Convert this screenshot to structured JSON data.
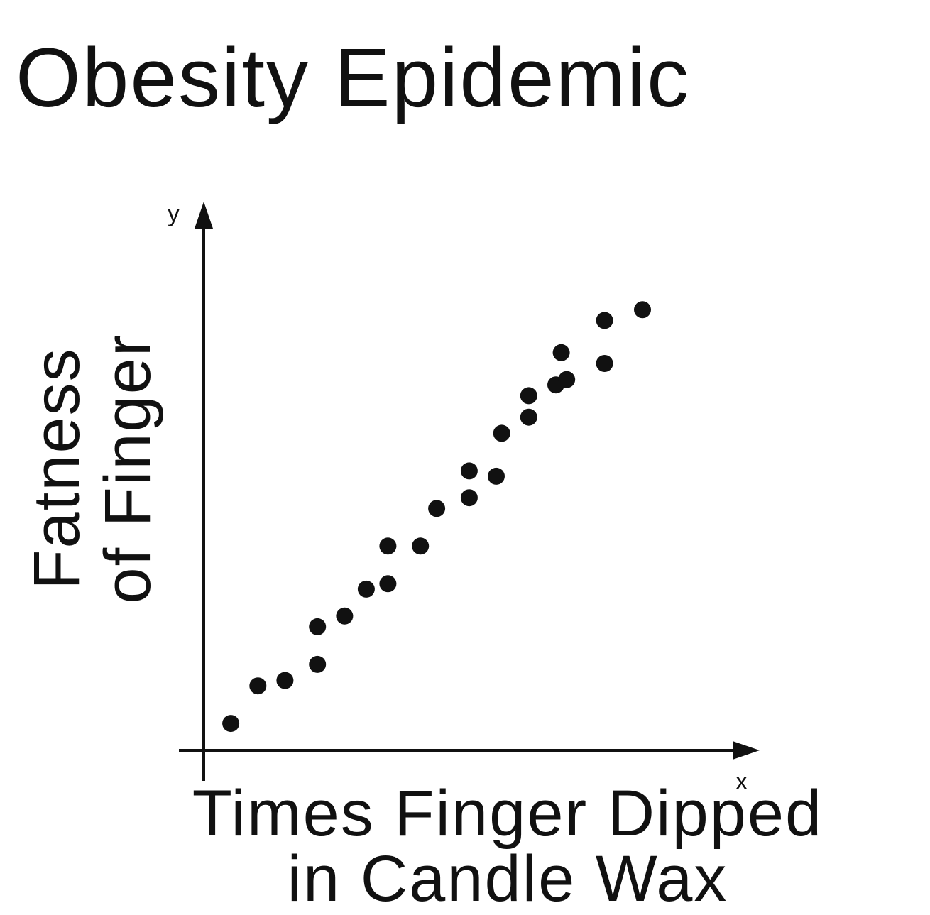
{
  "chart_data": {
    "type": "scatter",
    "title": "Obesity Epidemic",
    "xlabel_lines": [
      "Times Finger Dipped",
      "in Candle Wax"
    ],
    "ylabel_lines": [
      "Fatness",
      "of Finger"
    ],
    "x_axis_letter": "x",
    "y_axis_letter": "y",
    "xlim": [
      0,
      100
    ],
    "ylim": [
      0,
      100
    ],
    "grid": false,
    "legend": "none",
    "colors": {
      "points": "#111111",
      "axes": "#111111"
    },
    "points": [
      {
        "x": 5,
        "y": 5
      },
      {
        "x": 10,
        "y": 12
      },
      {
        "x": 15,
        "y": 13
      },
      {
        "x": 21,
        "y": 16
      },
      {
        "x": 21,
        "y": 23
      },
      {
        "x": 26,
        "y": 25
      },
      {
        "x": 30,
        "y": 30
      },
      {
        "x": 34,
        "y": 31
      },
      {
        "x": 34,
        "y": 38
      },
      {
        "x": 40,
        "y": 38
      },
      {
        "x": 43,
        "y": 45
      },
      {
        "x": 49,
        "y": 47
      },
      {
        "x": 49,
        "y": 52
      },
      {
        "x": 54,
        "y": 51
      },
      {
        "x": 55,
        "y": 59
      },
      {
        "x": 60,
        "y": 62
      },
      {
        "x": 60,
        "y": 66
      },
      {
        "x": 65,
        "y": 68
      },
      {
        "x": 66,
        "y": 74
      },
      {
        "x": 67,
        "y": 69
      },
      {
        "x": 74,
        "y": 72
      },
      {
        "x": 74,
        "y": 80
      },
      {
        "x": 81,
        "y": 82
      }
    ]
  }
}
